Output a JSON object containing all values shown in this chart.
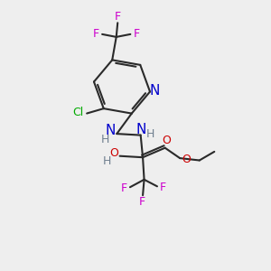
{
  "bg_color": "#eeeeee",
  "atom_colors": {
    "C": "#000000",
    "H": "#708090",
    "N": "#0000cc",
    "O": "#cc0000",
    "F": "#cc00cc",
    "Cl": "#00aa00"
  },
  "bond_color": "#2a2a2a",
  "figsize": [
    3.0,
    3.0
  ],
  "dpi": 100
}
